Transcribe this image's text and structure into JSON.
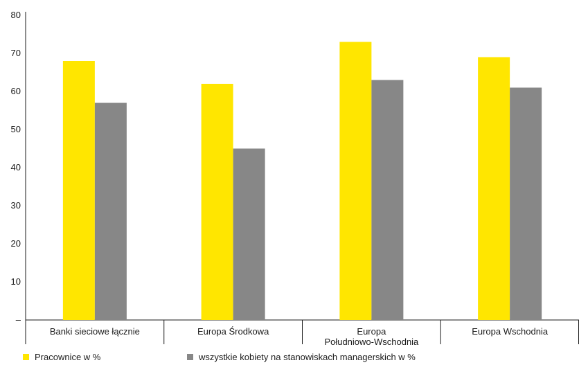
{
  "chart_data": {
    "type": "bar",
    "categories": [
      [
        "Banki sieciowe łącznie"
      ],
      [
        "Europa Środkowa"
      ],
      [
        "Europa",
        "Południowo-Wschodnia"
      ],
      [
        "Europa Wschodnia"
      ]
    ],
    "series": [
      {
        "name": "Pracownice w %",
        "color": "#FFE600",
        "values": [
          68,
          62,
          73,
          69
        ]
      },
      {
        "name": "wszystkie kobiety na stanowiskach managerskich w %",
        "color": "#878787",
        "values": [
          57,
          45,
          63,
          61
        ]
      }
    ],
    "ylim": [
      0,
      80
    ],
    "yticks": [
      "–",
      "10",
      "20",
      "30",
      "40",
      "50",
      "60",
      "70",
      "80"
    ],
    "grid": false,
    "legend_position": "bottom-left"
  }
}
